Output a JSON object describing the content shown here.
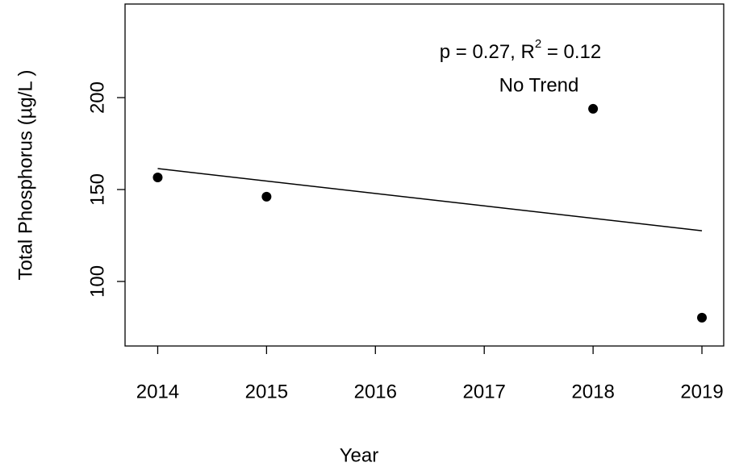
{
  "chart_data": {
    "type": "scatter",
    "x": [
      2014,
      2015,
      2018,
      2019
    ],
    "values": [
      156.6,
      146.1,
      193.9,
      80.3
    ],
    "color": "#000000",
    "fit": {
      "x": [
        2014,
        2019
      ],
      "values": [
        161.4,
        127.6
      ]
    },
    "xlim": [
      2013.7,
      2019.2
    ],
    "ylim": [
      64.9,
      250.9
    ],
    "xticks": [
      2014,
      2015,
      2016,
      2017,
      2018,
      2019
    ],
    "yticks": [
      100,
      150,
      200
    ],
    "xlabel": "Year",
    "ylabel": "Total Phosphorus (µg/L )",
    "annotation": {
      "text": "p = 0.27, R",
      "sup": "2",
      "tail": " = 0.12"
    },
    "note": "No Trend"
  }
}
